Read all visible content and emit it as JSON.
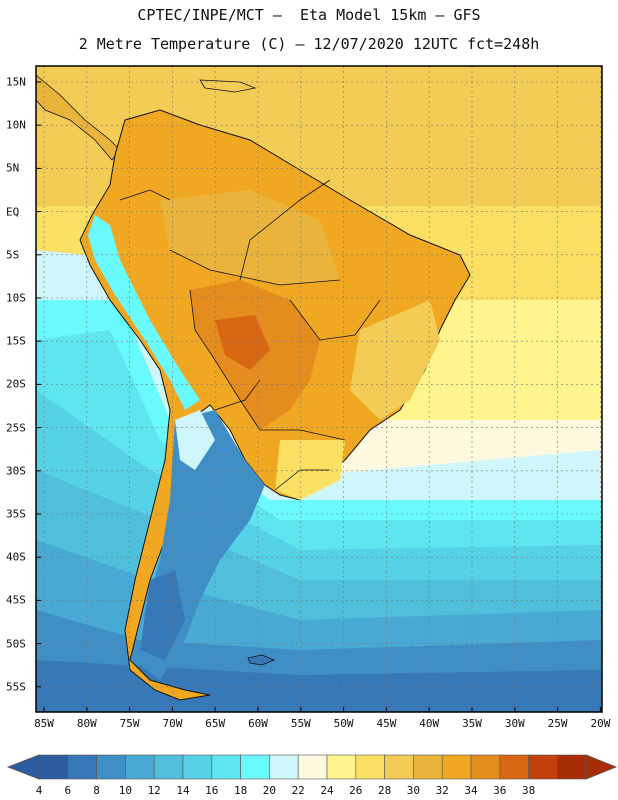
{
  "header": {
    "line1": "CPTEC/INPE/MCT –  Eta Model 15km – GFS",
    "line2": "2 Metre Temperature (C) – 12/07/2020 12UTC fct=248h"
  },
  "axes": {
    "lat_labels": [
      "15N",
      "10N",
      "5N",
      "EQ",
      "5S",
      "10S",
      "15S",
      "20S",
      "25S",
      "30S",
      "35S",
      "40S",
      "45S",
      "50S",
      "55S"
    ],
    "lon_labels": [
      "85W",
      "80W",
      "75W",
      "70W",
      "65W",
      "60W",
      "55W",
      "50W",
      "45W",
      "40W",
      "35W",
      "30W",
      "25W",
      "20W"
    ]
  },
  "colorbar": {
    "labels": [
      "4",
      "6",
      "8",
      "10",
      "12",
      "14",
      "16",
      "18",
      "20",
      "22",
      "24",
      "26",
      "28",
      "30",
      "32",
      "34",
      "36",
      "38"
    ],
    "colors": [
      "#2d5ca0",
      "#3778b8",
      "#3f8fc6",
      "#48a9d4",
      "#4fbfdc",
      "#56d2e6",
      "#5ee5f0",
      "#6af9fc",
      "#cff7fb",
      "#fff9df",
      "#fff48e",
      "#fbe064",
      "#f3cc55",
      "#eab43c",
      "#f0a722",
      "#e58c1e",
      "#d86613",
      "#c0420a",
      "#a82d05"
    ],
    "under_color": "#2d5ca0",
    "over_color": "#a82d05"
  }
}
